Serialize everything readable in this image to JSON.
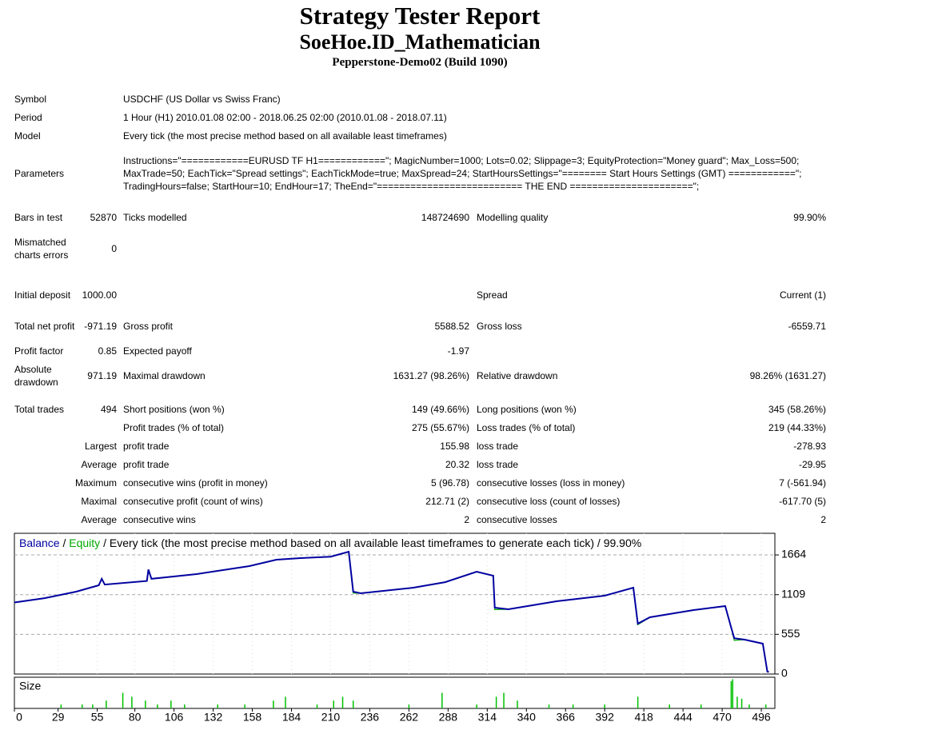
{
  "header": {
    "title": "Strategy Tester Report",
    "subtitle": "SoeHoe.ID_Mathematician",
    "server": "Pepperstone-Demo02 (Build 1090)"
  },
  "info": [
    {
      "label": "Symbol",
      "value": "USDCHF (US Dollar vs Swiss Franc)"
    },
    {
      "label": "Period",
      "value": "1 Hour (H1) 2010.01.08 02:00 - 2018.06.25 02:00 (2010.01.08 - 2018.07.11)"
    },
    {
      "label": "Model",
      "value": "Every tick (the most precise method based on all available least timeframes)"
    },
    {
      "label": "Parameters",
      "value": "Instructions=\"============EURUSD TF H1============\"; MagicNumber=1000; Lots=0.02; Slippage=3; EquityProtection=\"Money guard\"; Max_Loss=500; MaxTrade=50; EachTick=\"Spread settings\"; EachTickMode=true; MaxSpread=24; StartHoursSettings=\"======== Start Hours Settings (GMT) ============\"; TradingHours=false; StartHour=10; EndHour=17; TheEnd=\"========================== THE END ======================\";"
    }
  ],
  "stats": [
    [
      "Bars in test",
      "52870",
      "Ticks modelled",
      "148724690",
      "Modelling quality",
      "99.90%"
    ],
    [
      "Mismatched charts errors",
      "0"
    ],
    [
      "Initial deposit",
      "1000.00",
      null,
      null,
      "Spread",
      "Current (1)"
    ],
    [
      "Total net profit",
      "-971.19",
      "Gross profit",
      "5588.52",
      "Gross loss",
      "-6559.71"
    ],
    [
      "Profit factor",
      "0.85",
      "Expected payoff",
      "-1.97"
    ],
    [
      "Absolute drawdown",
      "971.19",
      "Maximal drawdown",
      "1631.27 (98.26%)",
      "Relative drawdown",
      "98.26% (1631.27)"
    ],
    [
      "Total trades",
      "494",
      "Short positions (won %)",
      "149 (49.66%)",
      "Long positions (won %)",
      "345 (58.26%)"
    ],
    [
      null,
      null,
      "Profit trades (% of total)",
      "275 (55.67%)",
      "Loss trades (% of total)",
      "219 (44.33%)"
    ],
    [
      null,
      "Largest",
      "profit trade",
      "155.98",
      "loss trade",
      "-278.93"
    ],
    [
      null,
      "Average",
      "profit trade",
      "20.32",
      "loss trade",
      "-29.95"
    ],
    [
      null,
      "Maximum",
      "consecutive wins (profit in money)",
      "5 (96.78)",
      "consecutive losses (loss in money)",
      "7 (-561.94)"
    ],
    [
      null,
      "Maximal",
      "consecutive profit (count of wins)",
      "212.71 (2)",
      "consecutive loss (count of losses)",
      "-617.70 (5)"
    ],
    [
      null,
      "Average",
      "consecutive wins",
      "2",
      "consecutive losses",
      "2"
    ]
  ],
  "chart_data": {
    "type": "line",
    "legend_separator": "/",
    "caption": "/ Every tick (the most precise method based on all available least timeframes to generate each tick) / 99.90%",
    "x": [
      0,
      20,
      41,
      56,
      58,
      60,
      88,
      89,
      91,
      121,
      156,
      174,
      190,
      210,
      222,
      225,
      230,
      265,
      286,
      307,
      318,
      319,
      328,
      360,
      392,
      411,
      414,
      422,
      451,
      472,
      476,
      478,
      485,
      497,
      500,
      501
    ],
    "series": [
      {
        "name": "Balance",
        "color": "#0000a0",
        "values": [
          1000,
          1060,
          1150,
          1240,
          1330,
          1250,
          1300,
          1460,
          1330,
          1396,
          1508,
          1597,
          1620,
          1640,
          1709,
          1150,
          1128,
          1206,
          1284,
          1430,
          1374,
          927,
          905,
          1016,
          1095,
          1206,
          704,
          793,
          894,
          949,
          648,
          500,
          480,
          424,
          34,
          28.81
        ]
      },
      {
        "name": "Equity",
        "color": "#00aa00",
        "values": [
          1000,
          1060,
          1150,
          1240,
          1330,
          1250,
          1300,
          1460,
          1330,
          1396,
          1508,
          1597,
          1620,
          1640,
          1709,
          1130,
          1128,
          1206,
          1284,
          1430,
          1374,
          900,
          905,
          1016,
          1095,
          1206,
          690,
          793,
          894,
          949,
          648,
          470,
          480,
          424,
          34,
          28.81
        ]
      }
    ],
    "xlim": [
      0,
      505
    ],
    "xticks": [
      0,
      29,
      55,
      80,
      106,
      132,
      158,
      184,
      210,
      236,
      262,
      288,
      314,
      340,
      366,
      392,
      418,
      444,
      470,
      496
    ],
    "ylim": [
      0,
      1966
    ],
    "yticks": [
      0,
      555,
      1109,
      1664
    ],
    "grid": true,
    "size": {
      "name": "Size",
      "color": "#00c000",
      "ylim": [
        0,
        0.16
      ],
      "x": [
        31,
        45,
        52,
        61,
        72,
        78,
        87,
        95,
        104,
        113,
        135,
        153,
        172,
        180,
        201,
        212,
        218,
        225,
        262,
        284,
        307,
        320,
        325,
        334,
        355,
        371,
        392,
        414,
        435,
        456,
        476,
        477,
        480,
        483,
        488,
        499
      ],
      "values": [
        0.02,
        0.02,
        0.02,
        0.04,
        0.08,
        0.06,
        0.04,
        0.02,
        0.04,
        0.02,
        0.02,
        0.02,
        0.04,
        0.06,
        0.02,
        0.04,
        0.06,
        0.04,
        0.02,
        0.08,
        0.02,
        0.06,
        0.08,
        0.04,
        0.02,
        0.02,
        0.02,
        0.06,
        0.02,
        0.02,
        0.14,
        0.15,
        0.06,
        0.05,
        0.02,
        0.02
      ]
    }
  }
}
